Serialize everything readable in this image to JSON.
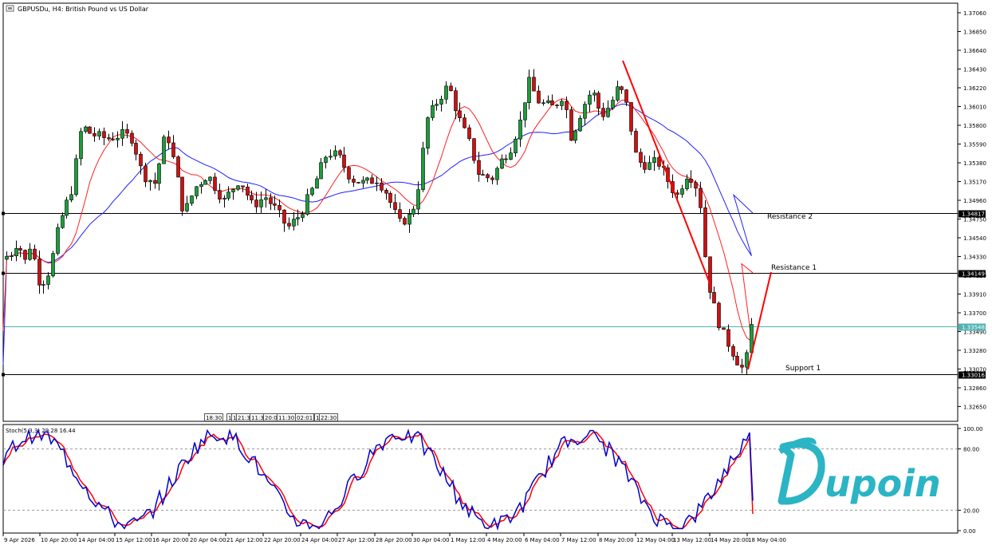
{
  "symbol": "GBPUSDu",
  "timeframe": "H4",
  "title_text": "GBPUSDu, H4:  British Pound vs US Dollar",
  "price_axis": {
    "labels": [
      "1.37060",
      "1.36850",
      "1.36640",
      "1.36430",
      "1.36220",
      "1.36010",
      "1.35800",
      "1.35590",
      "1.35380",
      "1.35170",
      "1.34960",
      "1.34750",
      "1.34540",
      "1.34330",
      "1.34120",
      "1.33910",
      "1.33700",
      "1.33490",
      "1.33280",
      "1.33070",
      "1.32860",
      "1.32650"
    ],
    "max": 1.3706,
    "min": 1.3265
  },
  "horizontal_lines": [
    {
      "name": "Resistance 2",
      "price": 1.34817,
      "price_label": "1.34817",
      "color": "#000000"
    },
    {
      "name": "Resistance 1",
      "price": 1.34149,
      "price_label": "1.34149",
      "color": "#000000"
    },
    {
      "name": "Support 1",
      "price": 1.33016,
      "price_label": "1.33016",
      "color": "#000000"
    }
  ],
  "current_price": {
    "price": 1.33548,
    "label": "1.33548",
    "color": "#4fb3b3"
  },
  "time_axis_labels": [
    "9 Apr 2026",
    "10 Apr 20:00",
    "14 Apr 04:00",
    "15 Apr 12:00",
    "16 Apr 20:00",
    "20 Apr 04:00",
    "21 Apr 12:00",
    "22 Apr 20:00",
    "24 Apr 04:00",
    "27 Apr 12:00",
    "28 Apr 20:00",
    "30 Apr 04:00",
    "1 May 12:00",
    "4 May 20:00",
    "6 May 04:00",
    "7 May 12:00",
    "8 May 20:00",
    "12 May 04:00",
    "13 May 12:00",
    "14 May 20:00",
    "18 May 04:00"
  ],
  "session_boxes": [
    "18:30",
    "1",
    "1",
    "21:30",
    "11:30",
    "20:00",
    "11:30",
    "02:01",
    "1",
    "22:30"
  ],
  "stochastic": {
    "label": "Stoch(5,3,3) 29.28 16.44",
    "main": 29.28,
    "signal": 16.44,
    "levels_labels": [
      "100.00",
      "80.00",
      "20.00",
      "0.00"
    ],
    "main_color": "#0000cc",
    "signal_color": "#ff0000"
  },
  "indicators": {
    "ma_fast_color": "#ff2020",
    "ma_slow_color": "#2020ff",
    "bull_color": "#1a9e3a",
    "bear_color": "#d01010",
    "trendline_color": "#ff0000"
  },
  "brand": {
    "logo_text": "Dupoin",
    "color": "#2bb4c4"
  }
}
